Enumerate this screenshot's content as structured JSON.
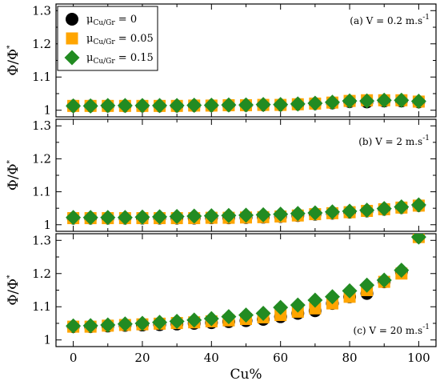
{
  "chart_data": {
    "type": "scatter",
    "xlabel": "Cu%",
    "ylabel_main": "Φ/Φ",
    "ylabel_sup": "*",
    "x": [
      0,
      5,
      10,
      15,
      20,
      25,
      30,
      35,
      40,
      45,
      50,
      55,
      60,
      65,
      70,
      75,
      80,
      85,
      90,
      95,
      100
    ],
    "xlim": [
      -5,
      105
    ],
    "xticks": [
      "0",
      "20",
      "40",
      "60",
      "80",
      "100"
    ],
    "yticks": [
      "1",
      "1.1",
      "1.2",
      "1.3"
    ],
    "ylim": [
      0.98,
      1.32
    ],
    "legend": {
      "placement": "top-left",
      "entries": [
        {
          "prefix": "μ",
          "sub": "Cu/Gr",
          "suffix": " = 0",
          "color": "#000000",
          "marker": "circle"
        },
        {
          "prefix": "μ",
          "sub": "Cu/Gr",
          "suffix": " = 0.05",
          "color": "#FFA500",
          "marker": "square"
        },
        {
          "prefix": "μ",
          "sub": "Cu/Gr",
          "suffix": " = 0.15",
          "color": "#228B22",
          "marker": "diamond"
        }
      ]
    },
    "panels": [
      {
        "label": "(a) V = 0.2 m.s",
        "label_sup": "-1",
        "series": [
          {
            "values": [
              1.013,
              1.013,
              1.013,
              1.013,
              1.013,
              1.013,
              1.013,
              1.014,
              1.014,
              1.015,
              1.015,
              1.016,
              1.016,
              1.018,
              1.02,
              1.022,
              1.026,
              1.025,
              1.028,
              1.028,
              1.025
            ]
          },
          {
            "values": [
              1.013,
              1.013,
              1.013,
              1.013,
              1.013,
              1.013,
              1.013,
              1.014,
              1.014,
              1.015,
              1.015,
              1.016,
              1.016,
              1.018,
              1.02,
              1.023,
              1.028,
              1.03,
              1.03,
              1.03,
              1.026
            ]
          },
          {
            "values": [
              1.013,
              1.013,
              1.014,
              1.014,
              1.014,
              1.014,
              1.014,
              1.015,
              1.015,
              1.016,
              1.016,
              1.017,
              1.017,
              1.019,
              1.021,
              1.024,
              1.028,
              1.028,
              1.03,
              1.03,
              1.027
            ]
          }
        ]
      },
      {
        "label": "(b) V = 2 m.s",
        "label_sup": "-1",
        "series": [
          {
            "values": [
              1.02,
              1.02,
              1.02,
              1.02,
              1.02,
              1.02,
              1.02,
              1.02,
              1.021,
              1.021,
              1.022,
              1.023,
              1.025,
              1.028,
              1.032,
              1.035,
              1.038,
              1.042,
              1.047,
              1.052,
              1.058
            ]
          },
          {
            "values": [
              1.02,
              1.02,
              1.02,
              1.02,
              1.02,
              1.02,
              1.02,
              1.02,
              1.021,
              1.021,
              1.022,
              1.023,
              1.025,
              1.028,
              1.032,
              1.035,
              1.038,
              1.042,
              1.047,
              1.052,
              1.058
            ]
          },
          {
            "values": [
              1.022,
              1.022,
              1.022,
              1.022,
              1.023,
              1.024,
              1.025,
              1.026,
              1.027,
              1.028,
              1.029,
              1.03,
              1.032,
              1.034,
              1.036,
              1.039,
              1.041,
              1.044,
              1.049,
              1.054,
              1.06
            ]
          }
        ]
      },
      {
        "label": "(c) V = 20 m.s",
        "label_sup": "-1",
        "series": [
          {
            "values": [
              1.04,
              1.04,
              1.042,
              1.044,
              1.045,
              1.046,
              1.048,
              1.05,
              1.052,
              1.055,
              1.058,
              1.062,
              1.07,
              1.08,
              1.088,
              1.11,
              1.13,
              1.14,
              1.175,
              1.205,
              1.31
            ]
          },
          {
            "values": [
              1.04,
              1.04,
              1.043,
              1.045,
              1.047,
              1.049,
              1.051,
              1.053,
              1.056,
              1.059,
              1.063,
              1.068,
              1.075,
              1.085,
              1.095,
              1.11,
              1.13,
              1.15,
              1.175,
              1.2,
              1.31
            ]
          },
          {
            "values": [
              1.042,
              1.043,
              1.045,
              1.048,
              1.05,
              1.053,
              1.056,
              1.06,
              1.064,
              1.07,
              1.075,
              1.08,
              1.098,
              1.105,
              1.12,
              1.13,
              1.148,
              1.165,
              1.18,
              1.21,
              1.31
            ]
          }
        ]
      }
    ]
  }
}
